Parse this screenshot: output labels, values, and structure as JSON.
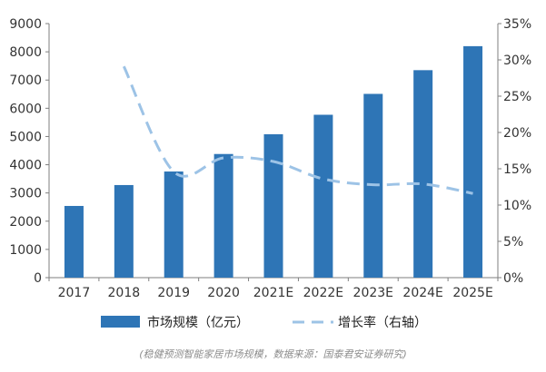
{
  "chart_data": {
    "type": "bar",
    "categories": [
      "2017",
      "2018",
      "2019",
      "2020",
      "2021E",
      "2022E",
      "2023E",
      "2024E",
      "2025E"
    ],
    "series": [
      {
        "name": "市场规模（亿元）",
        "type": "bar",
        "axis": "left",
        "color": "#2E75B6",
        "values": [
          2540,
          3280,
          3760,
          4380,
          5080,
          5770,
          6510,
          7350,
          8200
        ]
      },
      {
        "name": "增长率（右轴）",
        "type": "line",
        "axis": "right",
        "style": "dashed",
        "color": "#9DC3E6",
        "values": [
          null,
          29.1,
          14.6,
          16.5,
          16.0,
          13.6,
          12.8,
          12.9,
          11.6
        ]
      }
    ],
    "y_left": {
      "min": 0,
      "max": 9000,
      "ticks": [
        0,
        1000,
        2000,
        3000,
        4000,
        5000,
        6000,
        7000,
        8000,
        9000
      ]
    },
    "y_right": {
      "min": 0,
      "max": 35,
      "ticks": [
        "0%",
        "5%",
        "10%",
        "15%",
        "20%",
        "25%",
        "30%",
        "35%"
      ]
    },
    "legend_position": "bottom",
    "grid": false
  },
  "source": "(稳健预测智能家居市场规模，数据来源：国泰君安证券研究)"
}
